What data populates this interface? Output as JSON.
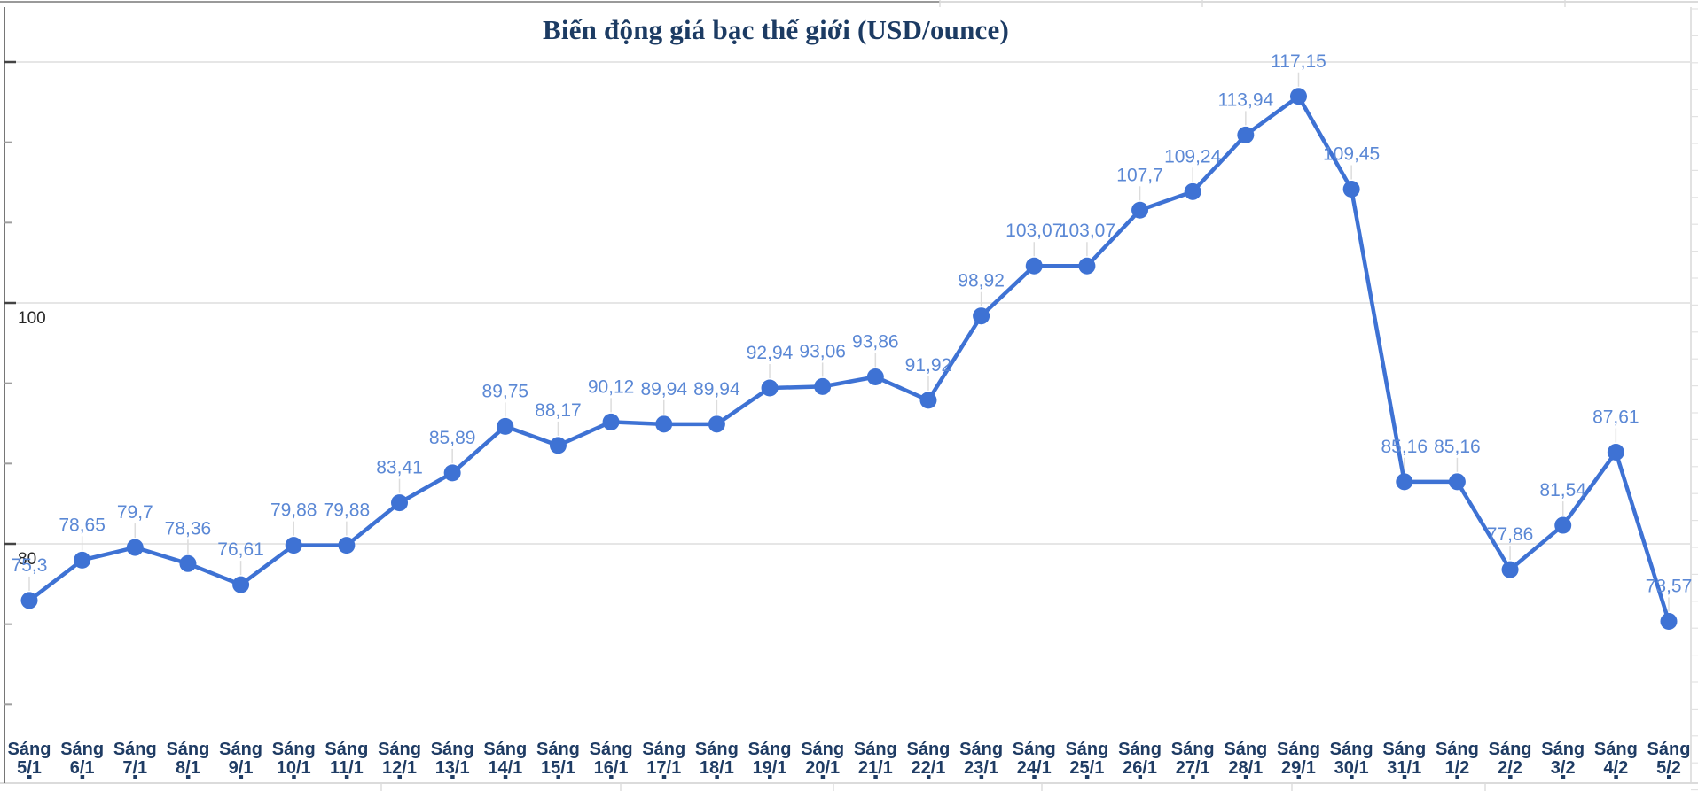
{
  "chart_data": {
    "type": "line",
    "title": "Biến động giá bạc thế giới (USD/ounce)",
    "categories": [
      "Sáng 5/1",
      "Sáng 6/1",
      "Sáng 7/1",
      "Sáng 8/1",
      "Sáng 9/1",
      "Sáng 10/1",
      "Sáng 11/1",
      "Sáng 12/1",
      "Sáng 13/1",
      "Sáng 14/1",
      "Sáng 15/1",
      "Sáng 16/1",
      "Sáng 17/1",
      "Sáng 18/1",
      "Sáng 19/1",
      "Sáng 20/1",
      "Sáng 21/1",
      "Sáng 22/1",
      "Sáng 23/1",
      "Sáng 24/1",
      "Sáng 25/1",
      "Sáng 26/1",
      "Sáng 27/1",
      "Sáng 28/1",
      "Sáng 29/1",
      "Sáng 30/1",
      "Sáng 31/1",
      "Sáng 1/2",
      "Sáng 2/2",
      "Sáng 3/2",
      "Sáng 4/2",
      "Sáng 5/2"
    ],
    "values": [
      75.3,
      78.65,
      79.7,
      78.36,
      76.61,
      79.88,
      79.88,
      83.41,
      85.89,
      89.75,
      88.17,
      90.12,
      89.94,
      89.94,
      92.94,
      93.06,
      93.86,
      91.92,
      98.92,
      103.07,
      103.07,
      107.7,
      109.24,
      113.94,
      117.15,
      109.45,
      85.16,
      85.16,
      77.86,
      81.54,
      87.61,
      73.57
    ],
    "value_labels": [
      "75,3",
      "78,65",
      "79,7",
      "78,36",
      "76,61",
      "79,88",
      "79,88",
      "83,41",
      "85,89",
      "89,75",
      "88,17",
      "90,12",
      "89,94",
      "89,94",
      "92,94",
      "93,06",
      "93,86",
      "91,92",
      "98,92",
      "103,07",
      "103,07",
      "107,7",
      "109,24",
      "113,94",
      "117,15",
      "109,45",
      "85,16",
      "85,16",
      "77,86",
      "81,54",
      "87,61",
      "73,57"
    ],
    "xlabel": "",
    "ylabel": "",
    "ylim": [
      60,
      125
    ],
    "y_ticks_labeled": [
      "80",
      "100"
    ],
    "y_gridlines": [
      80,
      100,
      120
    ],
    "grid": true,
    "legend": "none",
    "style": {
      "line_color": "#3e72d4",
      "marker_color": "#3e72d4",
      "point_label_color": "#5b88d5",
      "x_label_color": "#1f3c64",
      "y_label_color": "#252525",
      "title_color": "#1c3b63",
      "grid_color": "#e3e3e3",
      "axis_color": "#666666",
      "frame_color": "#cfcfcf"
    }
  }
}
